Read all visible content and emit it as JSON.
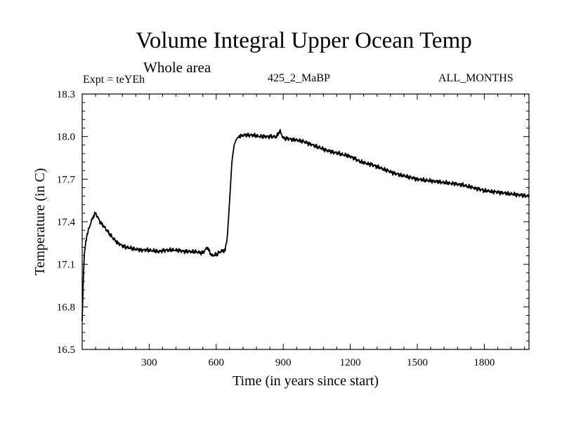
{
  "header": {
    "title": "Volume Integral Upper Ocean Temp",
    "subtitle": "Whole area",
    "experiment": "Expt = teYEh",
    "run_label": "425_2_MaBP",
    "months_label": "ALL_MONTHS"
  },
  "chart_data": {
    "type": "line",
    "title": "Volume Integral Upper Ocean Temp",
    "subtitle": "Whole area",
    "xlabel": "Time (in years since start)",
    "ylabel": "Temperature (in C)",
    "xlim": [
      0,
      2000
    ],
    "ylim": [
      16.5,
      18.3
    ],
    "xticks": [
      300,
      600,
      900,
      1200,
      1500,
      1800
    ],
    "yticks": [
      16.5,
      16.8,
      17.1,
      17.4,
      17.7,
      18.0,
      18.3
    ],
    "xtick_labels": [
      "300",
      "600",
      "900",
      "1200",
      "1500",
      "1800"
    ],
    "ytick_labels": [
      "16.5",
      "16.8",
      "17.1",
      "17.4",
      "17.7",
      "18.0",
      "18.3"
    ],
    "grid": false,
    "series": [
      {
        "name": "Volume Integral Upper Ocean Temp",
        "color": "#000000",
        "x": [
          0,
          5,
          10,
          20,
          30,
          40,
          50,
          60,
          70,
          80,
          90,
          100,
          120,
          140,
          160,
          180,
          200,
          230,
          260,
          300,
          340,
          380,
          420,
          460,
          500,
          540,
          560,
          580,
          600,
          620,
          640,
          650,
          660,
          670,
          680,
          690,
          700,
          720,
          760,
          800,
          840,
          870,
          885,
          900,
          940,
          980,
          1000,
          1050,
          1100,
          1150,
          1200,
          1250,
          1300,
          1350,
          1400,
          1450,
          1500,
          1550,
          1600,
          1650,
          1700,
          1750,
          1800,
          1850,
          1900,
          1950,
          2000
        ],
        "y": [
          16.7,
          17.0,
          17.18,
          17.3,
          17.35,
          17.4,
          17.44,
          17.46,
          17.43,
          17.4,
          17.38,
          17.36,
          17.32,
          17.28,
          17.25,
          17.23,
          17.22,
          17.21,
          17.2,
          17.2,
          17.19,
          17.2,
          17.2,
          17.19,
          17.19,
          17.18,
          17.22,
          17.16,
          17.17,
          17.19,
          17.2,
          17.3,
          17.55,
          17.82,
          17.94,
          17.98,
          18.0,
          18.01,
          18.01,
          18.0,
          18.0,
          18.0,
          18.04,
          17.99,
          17.98,
          17.97,
          17.96,
          17.93,
          17.9,
          17.88,
          17.86,
          17.82,
          17.8,
          17.77,
          17.74,
          17.72,
          17.7,
          17.69,
          17.68,
          17.67,
          17.66,
          17.64,
          17.62,
          17.61,
          17.6,
          17.59,
          17.58
        ]
      }
    ]
  }
}
